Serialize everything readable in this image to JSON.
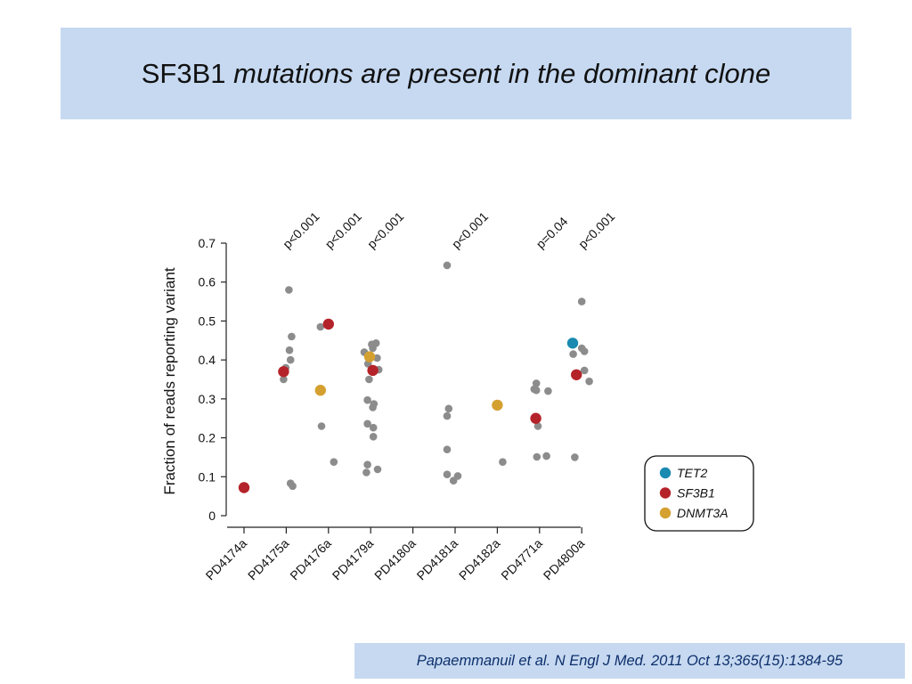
{
  "title": {
    "gene": "SF3B1",
    "rest": "mutations  are present in the dominant clone"
  },
  "citation": "Papaemmanuil et al. N Engl J Med. 2011 Oct 13;365(15):1384-95",
  "chart_data": {
    "type": "scatter",
    "ylabel": "Fraction of reads reporting variant",
    "xlabel": "",
    "ylim": [
      0,
      0.7
    ],
    "yticks": [
      0,
      0.1,
      0.2,
      0.3,
      0.4,
      0.5,
      0.6,
      0.7
    ],
    "ytick_labels": [
      "0",
      "0.1",
      "0.2",
      "0.3",
      "0.4",
      "0.5",
      "0.6",
      "0.7"
    ],
    "categories": [
      "PD4174a",
      "PD4175a",
      "PD4176a",
      "PD4179a",
      "PD4180a",
      "PD4181a",
      "PD4182a",
      "PD4771a",
      "PD4800a"
    ],
    "annotations": [
      {
        "category": "PD4175a",
        "text": "p<0.001"
      },
      {
        "category": "PD4176a",
        "text": "p<0.001"
      },
      {
        "category": "PD4179a",
        "text": "p<0.001"
      },
      {
        "category": "PD4181a",
        "text": "p<0.001"
      },
      {
        "category": "PD4771a",
        "text": "p=0.04"
      },
      {
        "category": "PD4800a",
        "text": "p<0.001"
      }
    ],
    "legend": {
      "placement": "bottom-right",
      "entries": [
        {
          "name": "TET2",
          "color": "#1a8ab0"
        },
        {
          "name": "SF3B1",
          "color": "#b5232a"
        },
        {
          "name": "DNMT3A",
          "color": "#d4a030"
        }
      ]
    },
    "other_color": "#8c8c8c",
    "series": [
      {
        "name": "other",
        "points": [
          {
            "category": "PD4175a",
            "offset": -0.05,
            "y": 0.35
          },
          {
            "category": "PD4175a",
            "offset": -0.01,
            "y": 0.38
          },
          {
            "category": "PD4175a",
            "offset": 0.05,
            "y": 0.58
          },
          {
            "category": "PD4175a",
            "offset": 0.06,
            "y": 0.425
          },
          {
            "category": "PD4175a",
            "offset": 0.1,
            "y": 0.46
          },
          {
            "category": "PD4175a",
            "offset": 0.08,
            "y": 0.4
          },
          {
            "category": "PD4175a",
            "offset": 0.08,
            "y": 0.083
          },
          {
            "category": "PD4175a",
            "offset": 0.12,
            "y": 0.076
          },
          {
            "category": "PD4176a",
            "offset": -0.15,
            "y": 0.485
          },
          {
            "category": "PD4176a",
            "offset": -0.13,
            "y": 0.23
          },
          {
            "category": "PD4176a",
            "offset": 0.1,
            "y": 0.138
          },
          {
            "category": "PD4179a",
            "offset": -0.12,
            "y": 0.42
          },
          {
            "category": "PD4179a",
            "offset": -0.05,
            "y": 0.39
          },
          {
            "category": "PD4179a",
            "offset": 0.02,
            "y": 0.44
          },
          {
            "category": "PD4179a",
            "offset": 0.1,
            "y": 0.443
          },
          {
            "category": "PD4179a",
            "offset": 0.04,
            "y": 0.43
          },
          {
            "category": "PD4179a",
            "offset": 0.12,
            "y": 0.405
          },
          {
            "category": "PD4179a",
            "offset": 0.15,
            "y": 0.375
          },
          {
            "category": "PD4179a",
            "offset": -0.03,
            "y": 0.35
          },
          {
            "category": "PD4179a",
            "offset": -0.06,
            "y": 0.297
          },
          {
            "category": "PD4179a",
            "offset": 0.06,
            "y": 0.287
          },
          {
            "category": "PD4179a",
            "offset": 0.04,
            "y": 0.278
          },
          {
            "category": "PD4179a",
            "offset": -0.06,
            "y": 0.236
          },
          {
            "category": "PD4179a",
            "offset": 0.05,
            "y": 0.226
          },
          {
            "category": "PD4179a",
            "offset": 0.05,
            "y": 0.203
          },
          {
            "category": "PD4179a",
            "offset": -0.06,
            "y": 0.131
          },
          {
            "category": "PD4179a",
            "offset": 0.13,
            "y": 0.119
          },
          {
            "category": "PD4179a",
            "offset": -0.08,
            "y": 0.111
          },
          {
            "category": "PD4181a",
            "offset": -0.15,
            "y": 0.643
          },
          {
            "category": "PD4181a",
            "offset": -0.12,
            "y": 0.275
          },
          {
            "category": "PD4181a",
            "offset": -0.15,
            "y": 0.256
          },
          {
            "category": "PD4181a",
            "offset": -0.15,
            "y": 0.17
          },
          {
            "category": "PD4181a",
            "offset": -0.15,
            "y": 0.106
          },
          {
            "category": "PD4181a",
            "offset": 0.05,
            "y": 0.102
          },
          {
            "category": "PD4181a",
            "offset": -0.03,
            "y": 0.09
          },
          {
            "category": "PD4182a",
            "offset": 0.1,
            "y": 0.138
          },
          {
            "category": "PD4771a",
            "offset": -0.06,
            "y": 0.34
          },
          {
            "category": "PD4771a",
            "offset": -0.1,
            "y": 0.325
          },
          {
            "category": "PD4771a",
            "offset": -0.06,
            "y": 0.322
          },
          {
            "category": "PD4771a",
            "offset": 0.16,
            "y": 0.32
          },
          {
            "category": "PD4771a",
            "offset": -0.03,
            "y": 0.23
          },
          {
            "category": "PD4771a",
            "offset": -0.05,
            "y": 0.151
          },
          {
            "category": "PD4771a",
            "offset": 0.13,
            "y": 0.153
          },
          {
            "category": "PD4800a",
            "offset": 0.0,
            "y": 0.55
          },
          {
            "category": "PD4800a",
            "offset": 0.0,
            "y": 0.43
          },
          {
            "category": "PD4800a",
            "offset": 0.05,
            "y": 0.422
          },
          {
            "category": "PD4800a",
            "offset": -0.16,
            "y": 0.415
          },
          {
            "category": "PD4800a",
            "offset": 0.05,
            "y": 0.373
          },
          {
            "category": "PD4800a",
            "offset": 0.14,
            "y": 0.345
          },
          {
            "category": "PD4800a",
            "offset": -0.13,
            "y": 0.15
          }
        ]
      },
      {
        "name": "SF3B1",
        "points": [
          {
            "category": "PD4174a",
            "offset": 0.0,
            "y": 0.072
          },
          {
            "category": "PD4175a",
            "offset": -0.05,
            "y": 0.37
          },
          {
            "category": "PD4176a",
            "offset": 0.0,
            "y": 0.492
          },
          {
            "category": "PD4179a",
            "offset": 0.04,
            "y": 0.373
          },
          {
            "category": "PD4771a",
            "offset": -0.07,
            "y": 0.25
          },
          {
            "category": "PD4800a",
            "offset": -0.1,
            "y": 0.362
          }
        ]
      },
      {
        "name": "DNMT3A",
        "points": [
          {
            "category": "PD4176a",
            "offset": -0.15,
            "y": 0.322
          },
          {
            "category": "PD4179a",
            "offset": -0.02,
            "y": 0.408
          },
          {
            "category": "PD4182a",
            "offset": 0.0,
            "y": 0.284
          }
        ]
      },
      {
        "name": "TET2",
        "points": [
          {
            "category": "PD4800a",
            "offset": -0.17,
            "y": 0.443
          }
        ]
      }
    ]
  }
}
